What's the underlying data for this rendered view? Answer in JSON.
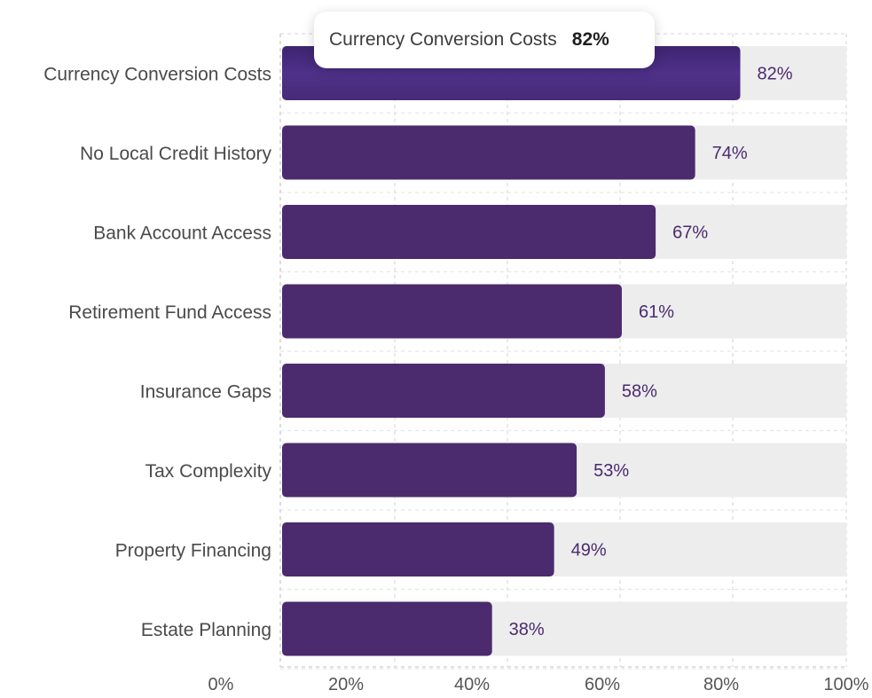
{
  "chart_data": {
    "type": "bar",
    "orientation": "horizontal",
    "categories": [
      "Currency Conversion Costs",
      "No Local Credit History",
      "Bank Account Access",
      "Retirement Fund Access",
      "Insurance Gaps",
      "Tax Complexity",
      "Property Financing",
      "Estate Planning"
    ],
    "values": [
      82,
      74,
      67,
      61,
      58,
      53,
      49,
      38
    ],
    "value_labels": [
      "82%",
      "74%",
      "67%",
      "61%",
      "58%",
      "53%",
      "49%",
      "38%"
    ],
    "xlim": [
      0,
      100
    ],
    "x_ticks": [
      "0%",
      "20%",
      "40%",
      "60%",
      "80%",
      "100%"
    ],
    "grid": true,
    "bar_color": "#4b2a6e",
    "highlight_color": "#4f318a",
    "track_color": "#ededed",
    "tooltip": {
      "category": "Currency Conversion Costs",
      "value": "82%"
    }
  }
}
